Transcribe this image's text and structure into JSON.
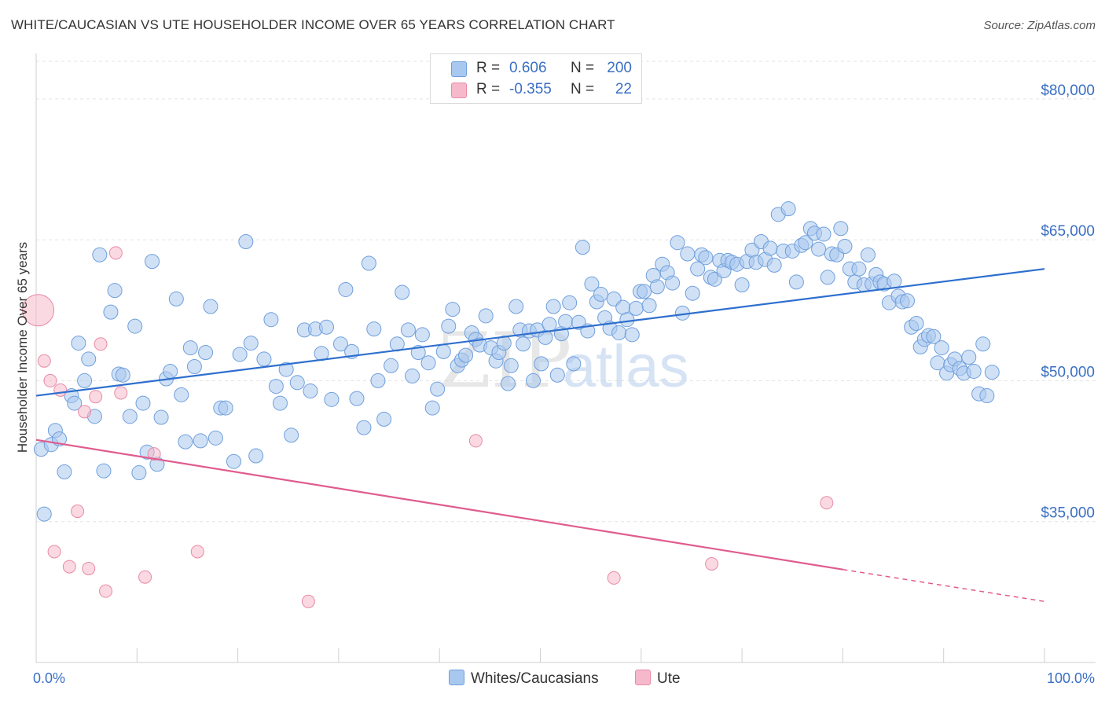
{
  "header": {
    "title": "WHITE/CAUCASIAN VS UTE HOUSEHOLDER INCOME OVER 65 YEARS CORRELATION CHART",
    "source": "Source: ZipAtlas.com"
  },
  "watermark": {
    "part1": "ZIP",
    "part2": "atlas"
  },
  "legend": {
    "rows": [
      {
        "r_label": "R =",
        "r_value": "0.606",
        "n_label": "N =",
        "n_value": "200",
        "color": "#a9c8ef"
      },
      {
        "r_label": "R =",
        "r_value": "-0.355",
        "n_label": "N =",
        "n_value": "22",
        "color": "#f6b9cb"
      }
    ]
  },
  "bottom_legend": {
    "items": [
      {
        "label": "Whites/Caucasians",
        "color": "#a9c8ef"
      },
      {
        "label": "Ute",
        "color": "#f6b9cb"
      }
    ]
  },
  "chart_data": {
    "type": "scatter",
    "title": "WHITE/CAUCASIAN VS UTE HOUSEHOLDER INCOME OVER 65 YEARS CORRELATION CHART",
    "ylabel": "Householder Income Over 65 years",
    "xlabel": "",
    "xlim": [
      0,
      100
    ],
    "ylim": [
      20000,
      84000
    ],
    "x_tick_labels": [
      "0.0%",
      "100.0%"
    ],
    "y_ticks": [
      35000,
      50000,
      65000,
      80000
    ],
    "y_tick_labels": [
      "$35,000",
      "$50,000",
      "$65,000",
      "$80,000"
    ],
    "grid": true,
    "series": [
      {
        "name": "Whites/Caucasians",
        "color": "#a9c8ef",
        "stroke": "#6f9fdc",
        "trend": {
          "x": [
            0,
            100
          ],
          "y": [
            48400,
            61900
          ],
          "color": "#2e6fce"
        },
        "points": [
          [
            0.5,
            42700
          ],
          [
            0.8,
            35800
          ],
          [
            1.5,
            43200
          ],
          [
            1.9,
            44700
          ],
          [
            2.3,
            43800
          ],
          [
            2.8,
            40300
          ],
          [
            3.5,
            48400
          ],
          [
            3.8,
            47600
          ],
          [
            4.2,
            54000
          ],
          [
            4.8,
            50000
          ],
          [
            5.2,
            52300
          ],
          [
            5.8,
            46200
          ],
          [
            6.3,
            63400
          ],
          [
            6.7,
            40400
          ],
          [
            7.4,
            57300
          ],
          [
            7.8,
            59600
          ],
          [
            8.2,
            50700
          ],
          [
            8.6,
            50600
          ],
          [
            9.3,
            46200
          ],
          [
            9.8,
            55800
          ],
          [
            10.2,
            40200
          ],
          [
            10.6,
            47600
          ],
          [
            11.0,
            42400
          ],
          [
            11.5,
            62700
          ],
          [
            12.0,
            41100
          ],
          [
            12.4,
            46100
          ],
          [
            12.9,
            50200
          ],
          [
            13.3,
            51000
          ],
          [
            13.9,
            58700
          ],
          [
            14.4,
            48500
          ],
          [
            14.8,
            43500
          ],
          [
            15.3,
            53500
          ],
          [
            15.7,
            51500
          ],
          [
            16.3,
            43600
          ],
          [
            16.8,
            53000
          ],
          [
            17.3,
            57900
          ],
          [
            17.8,
            43900
          ],
          [
            18.3,
            47100
          ],
          [
            18.8,
            47100
          ],
          [
            19.6,
            41400
          ],
          [
            20.2,
            52800
          ],
          [
            20.8,
            64800
          ],
          [
            21.3,
            54000
          ],
          [
            21.8,
            42000
          ],
          [
            22.6,
            52300
          ],
          [
            23.3,
            56500
          ],
          [
            23.8,
            49400
          ],
          [
            24.2,
            47600
          ],
          [
            24.8,
            51200
          ],
          [
            25.3,
            44200
          ],
          [
            25.9,
            49800
          ],
          [
            26.6,
            55400
          ],
          [
            27.2,
            48900
          ],
          [
            27.7,
            55500
          ],
          [
            28.3,
            52900
          ],
          [
            28.8,
            55700
          ],
          [
            29.3,
            48000
          ],
          [
            30.2,
            53900
          ],
          [
            30.7,
            59700
          ],
          [
            31.3,
            53100
          ],
          [
            31.8,
            48100
          ],
          [
            32.5,
            45000
          ],
          [
            33.0,
            62500
          ],
          [
            33.5,
            55500
          ],
          [
            33.9,
            50000
          ],
          [
            34.5,
            45900
          ],
          [
            35.2,
            51600
          ],
          [
            35.8,
            53900
          ],
          [
            36.3,
            59400
          ],
          [
            36.9,
            55400
          ],
          [
            37.3,
            50500
          ],
          [
            37.9,
            53000
          ],
          [
            38.3,
            54900
          ],
          [
            38.9,
            51900
          ],
          [
            39.3,
            47100
          ],
          [
            39.8,
            49100
          ],
          [
            40.4,
            53100
          ],
          [
            40.9,
            55800
          ],
          [
            41.3,
            57600
          ],
          [
            41.8,
            51600
          ],
          [
            42.2,
            52200
          ],
          [
            42.6,
            52700
          ],
          [
            43.2,
            55100
          ],
          [
            43.6,
            54400
          ],
          [
            44.0,
            53800
          ],
          [
            44.6,
            56900
          ],
          [
            45.1,
            53500
          ],
          [
            45.6,
            52100
          ],
          [
            45.9,
            53000
          ],
          [
            46.4,
            54000
          ],
          [
            46.8,
            49700
          ],
          [
            47.1,
            51600
          ],
          [
            47.6,
            57900
          ],
          [
            48.0,
            55400
          ],
          [
            48.3,
            53900
          ],
          [
            48.9,
            55300
          ],
          [
            49.3,
            50000
          ],
          [
            49.7,
            55400
          ],
          [
            50.1,
            51800
          ],
          [
            50.5,
            54600
          ],
          [
            50.9,
            56000
          ],
          [
            51.3,
            57900
          ],
          [
            51.7,
            50600
          ],
          [
            52.1,
            55000
          ],
          [
            52.5,
            56300
          ],
          [
            52.9,
            58300
          ],
          [
            53.3,
            51800
          ],
          [
            53.8,
            56200
          ],
          [
            54.2,
            64200
          ],
          [
            54.7,
            55300
          ],
          [
            55.1,
            60300
          ],
          [
            55.6,
            58400
          ],
          [
            56.0,
            59200
          ],
          [
            56.4,
            56700
          ],
          [
            56.9,
            55600
          ],
          [
            57.3,
            58700
          ],
          [
            57.8,
            55100
          ],
          [
            58.2,
            57800
          ],
          [
            58.6,
            56500
          ],
          [
            59.1,
            54900
          ],
          [
            59.5,
            57700
          ],
          [
            59.9,
            59500
          ],
          [
            60.3,
            59500
          ],
          [
            60.8,
            58000
          ],
          [
            61.2,
            61200
          ],
          [
            61.6,
            60000
          ],
          [
            62.1,
            62400
          ],
          [
            62.6,
            61500
          ],
          [
            63.1,
            60400
          ],
          [
            63.6,
            64700
          ],
          [
            64.1,
            57200
          ],
          [
            64.6,
            63500
          ],
          [
            65.1,
            59300
          ],
          [
            65.6,
            61900
          ],
          [
            66.0,
            63400
          ],
          [
            66.4,
            63100
          ],
          [
            66.9,
            61000
          ],
          [
            67.3,
            60800
          ],
          [
            67.8,
            62800
          ],
          [
            68.2,
            61700
          ],
          [
            68.6,
            62800
          ],
          [
            69.0,
            62600
          ],
          [
            69.5,
            62400
          ],
          [
            70.0,
            60200
          ],
          [
            70.5,
            62700
          ],
          [
            71.0,
            63900
          ],
          [
            71.4,
            62600
          ],
          [
            71.9,
            64800
          ],
          [
            72.3,
            62900
          ],
          [
            72.8,
            64100
          ],
          [
            73.2,
            62300
          ],
          [
            73.6,
            67700
          ],
          [
            74.1,
            63800
          ],
          [
            74.6,
            68300
          ],
          [
            75.0,
            63800
          ],
          [
            75.4,
            60500
          ],
          [
            75.9,
            64400
          ],
          [
            76.3,
            64700
          ],
          [
            76.8,
            66200
          ],
          [
            77.2,
            65700
          ],
          [
            77.6,
            64000
          ],
          [
            78.1,
            65600
          ],
          [
            78.5,
            61000
          ],
          [
            78.9,
            63500
          ],
          [
            79.4,
            63400
          ],
          [
            79.8,
            66200
          ],
          [
            80.2,
            64300
          ],
          [
            80.7,
            61900
          ],
          [
            81.2,
            60500
          ],
          [
            81.6,
            61900
          ],
          [
            82.1,
            60200
          ],
          [
            82.5,
            63400
          ],
          [
            82.9,
            60300
          ],
          [
            83.3,
            61300
          ],
          [
            83.7,
            60500
          ],
          [
            84.1,
            60300
          ],
          [
            84.6,
            58300
          ],
          [
            85.1,
            60600
          ],
          [
            85.5,
            59000
          ],
          [
            85.9,
            58400
          ],
          [
            86.4,
            58500
          ],
          [
            86.8,
            55700
          ],
          [
            87.3,
            56100
          ],
          [
            87.7,
            53600
          ],
          [
            88.1,
            54400
          ],
          [
            88.5,
            54800
          ],
          [
            89.0,
            54700
          ],
          [
            89.4,
            51900
          ],
          [
            89.8,
            53500
          ],
          [
            90.3,
            50800
          ],
          [
            90.7,
            51700
          ],
          [
            91.1,
            52300
          ],
          [
            91.6,
            51300
          ],
          [
            92.0,
            50800
          ],
          [
            92.5,
            52500
          ],
          [
            93.0,
            51000
          ],
          [
            93.5,
            48600
          ],
          [
            93.9,
            53900
          ],
          [
            94.3,
            48400
          ],
          [
            94.8,
            50900
          ]
        ]
      },
      {
        "name": "Ute",
        "color": "#f6b9cb",
        "stroke": "#e88aa6",
        "trend": {
          "x": [
            0,
            80
          ],
          "y": [
            43700,
            29900
          ],
          "dash_to": {
            "x": 100,
            "y": 26500
          },
          "color": "#e05c8e"
        },
        "points": [
          [
            0.2,
            57500
          ],
          [
            0.8,
            52100
          ],
          [
            1.4,
            50000
          ],
          [
            1.8,
            31800
          ],
          [
            2.4,
            49000
          ],
          [
            3.3,
            30200
          ],
          [
            4.1,
            36100
          ],
          [
            4.8,
            46700
          ],
          [
            5.2,
            30000
          ],
          [
            5.9,
            48300
          ],
          [
            6.4,
            53900
          ],
          [
            6.9,
            27600
          ],
          [
            7.9,
            63600
          ],
          [
            8.4,
            48700
          ],
          [
            10.8,
            29100
          ],
          [
            11.7,
            42200
          ],
          [
            16.0,
            31800
          ],
          [
            27.0,
            26500
          ],
          [
            43.6,
            43600
          ],
          [
            57.3,
            29000
          ],
          [
            67.0,
            30500
          ],
          [
            78.4,
            37000
          ]
        ]
      }
    ]
  }
}
